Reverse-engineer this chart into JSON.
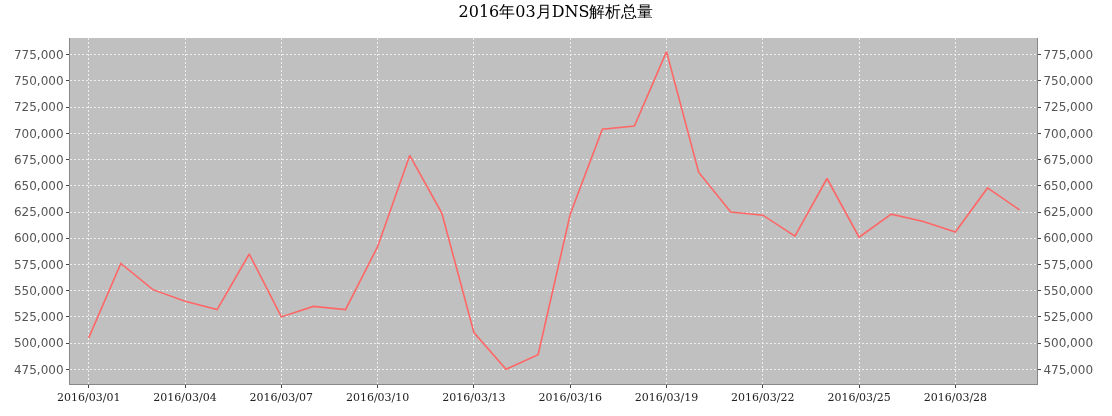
{
  "chart_data": {
    "type": "line",
    "title": "2016年03月DNS解析总量",
    "x": [
      "2016-03-01",
      "2016-03-02",
      "2016-03-03",
      "2016-03-04",
      "2016-03-05",
      "2016-03-06",
      "2016-03-07",
      "2016-03-08",
      "2016-03-09",
      "2016-03-10",
      "2016-03-11",
      "2016-03-12",
      "2016-03-13",
      "2016-03-14",
      "2016-03-15",
      "2016-03-16",
      "2016-03-17",
      "2016-03-18",
      "2016-03-19",
      "2016-03-20",
      "2016-03-21",
      "2016-03-22",
      "2016-03-23",
      "2016-03-24",
      "2016-03-25",
      "2016-03-26",
      "2016-03-27",
      "2016-03-28",
      "2016-03-29",
      "2016-03-30"
    ],
    "series": [
      {
        "color": "#ff6666",
        "values": [
          505000,
          576000,
          551000,
          540000,
          532000,
          585000,
          525000,
          535000,
          532000,
          592000,
          679000,
          624000,
          510000,
          475000,
          489000,
          623000,
          704000,
          707000,
          778000,
          663000,
          625000,
          622000,
          602000,
          657000,
          601000,
          623000,
          616000,
          606000,
          648000,
          627000
        ]
      }
    ],
    "xlim": [
      "2016-02-29T10:00",
      "2016-03-30T13:00"
    ],
    "xticks": [
      {
        "value": "2016-03-01",
        "label": "2016/03/01"
      },
      {
        "value": "2016-03-04",
        "label": "2016/03/04"
      },
      {
        "value": "2016-03-07",
        "label": "2016/03/07"
      },
      {
        "value": "2016-03-10",
        "label": "2016/03/10"
      },
      {
        "value": "2016-03-13",
        "label": "2016/03/13"
      },
      {
        "value": "2016-03-16",
        "label": "2016/03/16"
      },
      {
        "value": "2016-03-19",
        "label": "2016/03/19"
      },
      {
        "value": "2016-03-22",
        "label": "2016/03/22"
      },
      {
        "value": "2016-03-25",
        "label": "2016/03/25"
      },
      {
        "value": "2016-03-28",
        "label": "2016/03/28"
      }
    ],
    "ylim": [
      461000,
      791000
    ],
    "yticks": [
      {
        "value": 475000,
        "label": "475,000"
      },
      {
        "value": 500000,
        "label": "500,000"
      },
      {
        "value": 525000,
        "label": "525,000"
      },
      {
        "value": 550000,
        "label": "550,000"
      },
      {
        "value": 575000,
        "label": "575,000"
      },
      {
        "value": 600000,
        "label": "600,000"
      },
      {
        "value": 625000,
        "label": "625,000"
      },
      {
        "value": 650000,
        "label": "650,000"
      },
      {
        "value": 675000,
        "label": "675,000"
      },
      {
        "value": 700000,
        "label": "700,000"
      },
      {
        "value": 725000,
        "label": "725,000"
      },
      {
        "value": 750000,
        "label": "750,000"
      },
      {
        "value": 775000,
        "label": "775,000"
      }
    ],
    "y2lim": [
      461000,
      791000
    ],
    "y2ticks": [
      {
        "value": 475000,
        "label": "475,000"
      },
      {
        "value": 500000,
        "label": "500,000"
      },
      {
        "value": 525000,
        "label": "525,000"
      },
      {
        "value": 550000,
        "label": "550,000"
      },
      {
        "value": 575000,
        "label": "575,000"
      },
      {
        "value": 600000,
        "label": "600,000"
      },
      {
        "value": 625000,
        "label": "625,000"
      },
      {
        "value": 650000,
        "label": "650,000"
      },
      {
        "value": 675000,
        "label": "675,000"
      },
      {
        "value": 700000,
        "label": "700,000"
      },
      {
        "value": 725000,
        "label": "725,000"
      },
      {
        "value": 750000,
        "label": "750,000"
      },
      {
        "value": 775000,
        "label": "775,000"
      }
    ],
    "grid": true,
    "marker": "none",
    "line_style": "solid"
  }
}
